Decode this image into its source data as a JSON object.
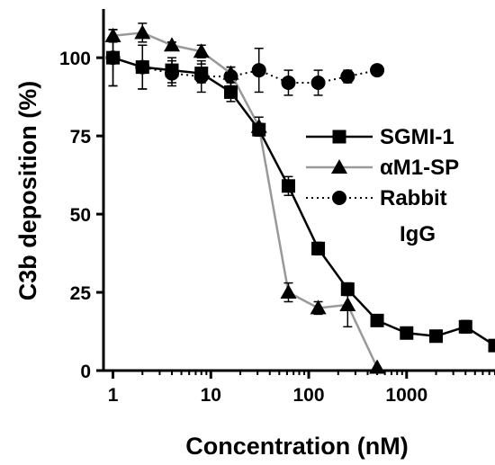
{
  "chart_data": {
    "type": "line",
    "xlabel": "Concentration (nM)",
    "ylabel": "C3b deposition (%)",
    "x_scale": "log",
    "xlim": [
      0.8,
      8000
    ],
    "ylim": [
      0,
      115
    ],
    "x_ticks": [
      {
        "value": 1,
        "label": "1"
      },
      {
        "value": 10,
        "label": "10"
      },
      {
        "value": 100,
        "label": "100"
      },
      {
        "value": 1000,
        "label": "1000"
      }
    ],
    "y_ticks": [
      {
        "value": 0,
        "label": "0"
      },
      {
        "value": 25,
        "label": "25"
      },
      {
        "value": 50,
        "label": "50"
      },
      {
        "value": 75,
        "label": "75"
      },
      {
        "value": 100,
        "label": "100"
      }
    ],
    "grid": false,
    "legend_position": "right",
    "series": [
      {
        "name": "SGMI-1",
        "marker": "square",
        "line_style": "solid",
        "color": "#000000",
        "x": [
          1,
          2,
          4,
          8,
          16,
          31,
          62,
          125,
          250,
          500,
          1000,
          2000,
          4000,
          8000
        ],
        "y": [
          100,
          97,
          96,
          95,
          89,
          77,
          59,
          39,
          26,
          16,
          12,
          11,
          14,
          8
        ],
        "error": [
          9,
          7,
          4,
          3,
          3,
          2,
          3,
          2,
          2,
          0,
          0,
          0,
          2,
          1
        ]
      },
      {
        "name": "αM1-SP",
        "marker": "triangle",
        "line_style": "solid",
        "color": "#999999",
        "x": [
          1,
          2,
          4,
          8,
          16,
          31,
          62,
          125,
          250,
          500
        ],
        "y": [
          107,
          108,
          104,
          102,
          95,
          78,
          25,
          20,
          21,
          1
        ],
        "error": [
          2,
          3,
          1,
          2,
          2,
          3,
          3,
          2,
          7,
          0
        ]
      },
      {
        "name": "Rabbit IgG",
        "legend_lines": [
          "Rabbit",
          "IgG"
        ],
        "marker": "circle",
        "line_style": "dotted",
        "color": "#000000",
        "x": [
          1,
          2,
          4,
          8,
          16,
          31,
          62,
          125,
          250,
          500
        ],
        "y": [
          100,
          97,
          95,
          94,
          94,
          96,
          92,
          92,
          94,
          96
        ],
        "error": [
          9,
          7,
          4,
          5,
          3,
          7,
          4,
          4,
          2,
          1
        ]
      }
    ]
  }
}
